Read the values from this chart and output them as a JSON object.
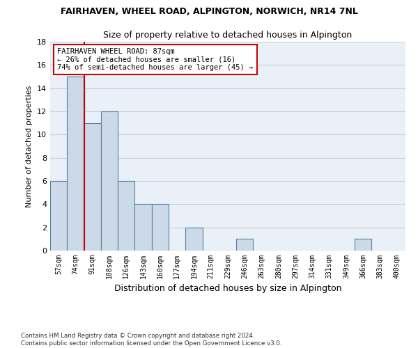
{
  "title1": "FAIRHAVEN, WHEEL ROAD, ALPINGTON, NORWICH, NR14 7NL",
  "title2": "Size of property relative to detached houses in Alpington",
  "xlabel": "Distribution of detached houses by size in Alpington",
  "ylabel": "Number of detached properties",
  "footnote": "Contains HM Land Registry data © Crown copyright and database right 2024.\nContains public sector information licensed under the Open Government Licence v3.0.",
  "bin_labels": [
    "57sqm",
    "74sqm",
    "91sqm",
    "108sqm",
    "126sqm",
    "143sqm",
    "160sqm",
    "177sqm",
    "194sqm",
    "211sqm",
    "229sqm",
    "246sqm",
    "263sqm",
    "280sqm",
    "297sqm",
    "314sqm",
    "331sqm",
    "349sqm",
    "366sqm",
    "383sqm",
    "400sqm"
  ],
  "bar_values": [
    6,
    15,
    11,
    12,
    6,
    4,
    4,
    0,
    2,
    0,
    0,
    1,
    0,
    0,
    0,
    0,
    0,
    0,
    1,
    0,
    0
  ],
  "bar_color": "#ccd9e8",
  "bar_edge_color": "#5580a0",
  "grid_color": "#cccccc",
  "bg_color": "#eaf0f8",
  "vline_x": 1.5,
  "vline_color": "#cc0000",
  "annotation_text": "FAIRHAVEN WHEEL ROAD: 87sqm\n← 26% of detached houses are smaller (16)\n74% of semi-detached houses are larger (45) →",
  "annotation_box_color": "#cc0000",
  "ylim": [
    0,
    18
  ],
  "yticks": [
    0,
    2,
    4,
    6,
    8,
    10,
    12,
    14,
    16,
    18
  ]
}
